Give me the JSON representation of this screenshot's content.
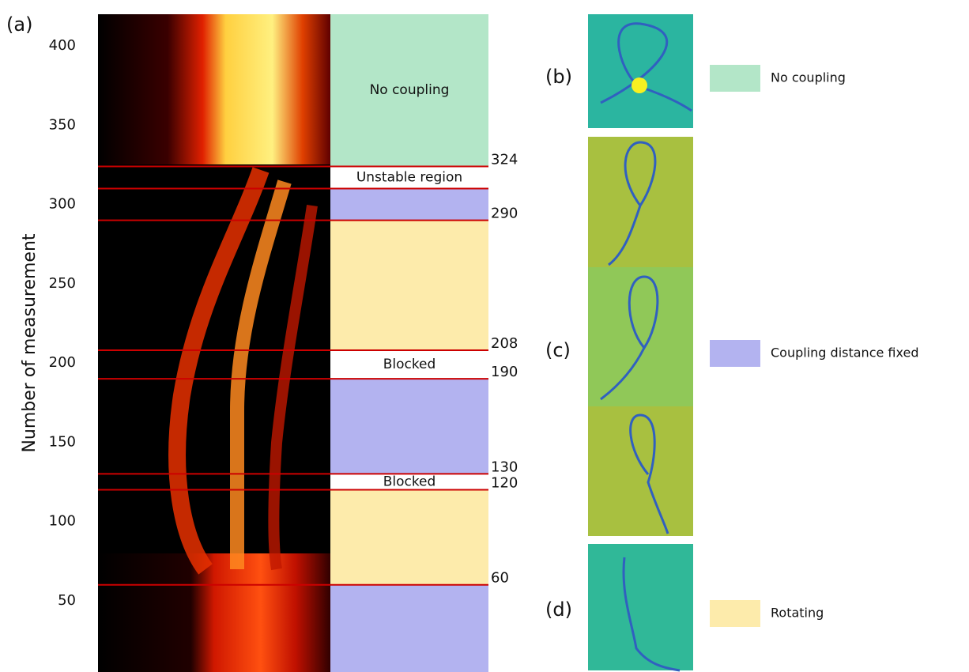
{
  "chart_data": {
    "type": "region-map",
    "ylabel": "Number of measurement",
    "ylim": [
      5,
      420
    ],
    "yticks": [
      50,
      100,
      150,
      200,
      250,
      300,
      350,
      400
    ],
    "panel_labels": [
      "(a)",
      "(b)",
      "(c)",
      "(d)"
    ],
    "lines": [
      324,
      310,
      290,
      208,
      190,
      130,
      120,
      60
    ],
    "value_labels": [
      "324",
      null,
      "290",
      "208",
      "190",
      "130",
      "120",
      "60"
    ],
    "line_color": "#cc0000",
    "regions": [
      {
        "name": "No coupling",
        "color": "#b3e6c8"
      },
      {
        "name": "Unstable region",
        "color": "#ffffff"
      },
      {
        "name": null,
        "color": "#b3b3f0"
      },
      {
        "name": null,
        "color": "#fdebab"
      },
      {
        "name": "Blocked",
        "color": "#ffffff"
      },
      {
        "name": null,
        "color": "#b3b3f0"
      },
      {
        "name": "Blocked",
        "color": "#ffffff"
      },
      {
        "name": null,
        "color": "#fdebab"
      },
      {
        "name": null,
        "color": "#b3b3f0"
      }
    ],
    "legend": [
      {
        "name": "No coupling",
        "color": "#b3e6c8"
      },
      {
        "name": "Coupling distance fixed",
        "color": "#b3b3f0"
      },
      {
        "name": "Rotating",
        "color": "#fdebab"
      }
    ]
  }
}
